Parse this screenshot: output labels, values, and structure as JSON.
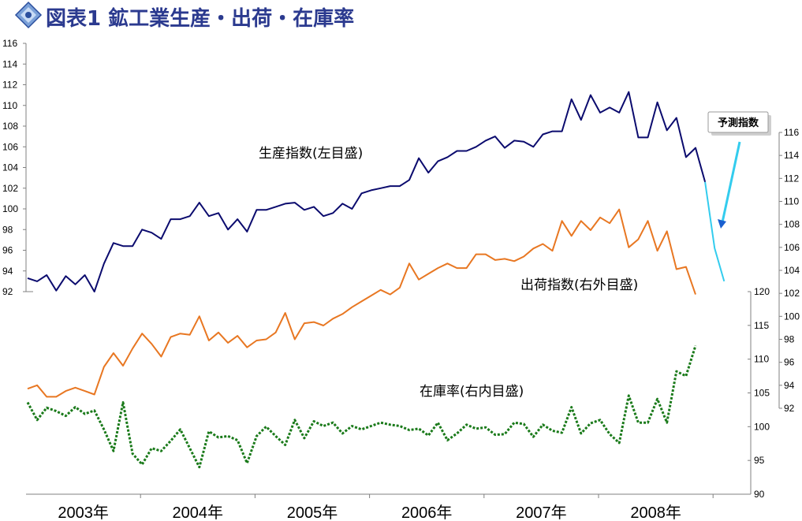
{
  "title": "図表1 鉱工業生産・出荷・在庫率",
  "colors": {
    "production": "#0b0b6e",
    "shipment": "#e87722",
    "inventory": "#1a7a1a",
    "forecast": "#33ccee",
    "title": "#2b3a8f"
  },
  "icon": "blue-diamond-logo-icon",
  "chart_data": {
    "type": "line",
    "x_labels": [
      "2003年",
      "2004年",
      "2005年",
      "2006年",
      "2007年",
      "2008年"
    ],
    "forecast_label": "予測指数",
    "axes": {
      "left": {
        "ticks": [
          92,
          94,
          96,
          98,
          100,
          102,
          104,
          106,
          108,
          110,
          112,
          114,
          116
        ],
        "ylim": [
          92,
          116
        ]
      },
      "right_outer": {
        "ticks": [
          92,
          94,
          96,
          98,
          100,
          102,
          104,
          106,
          108,
          110,
          112,
          114,
          116
        ],
        "ylim": [
          92,
          116
        ]
      },
      "right_inner": {
        "ticks": [
          90,
          95,
          100,
          105,
          110,
          115,
          120
        ],
        "ylim": [
          90,
          120
        ]
      }
    },
    "series": [
      {
        "key": "production",
        "name": "生産指数(左目盛)",
        "axis": "left",
        "start": "2003-01",
        "values": [
          93.3,
          93.0,
          93.6,
          92.1,
          93.5,
          92.7,
          93.6,
          92.0,
          94.7,
          96.7,
          96.4,
          96.4,
          98.0,
          97.7,
          97.1,
          99.0,
          99.0,
          99.3,
          100.6,
          99.3,
          99.6,
          98.0,
          99.0,
          97.8,
          99.9,
          99.9,
          100.2,
          100.5,
          100.6,
          99.9,
          100.2,
          99.3,
          99.6,
          100.5,
          100.0,
          101.5,
          101.8,
          102.0,
          102.2,
          102.2,
          102.8,
          104.9,
          103.5,
          104.6,
          105.0,
          105.6,
          105.6,
          106.0,
          106.6,
          107.0,
          105.9,
          106.6,
          106.5,
          106.0,
          107.2,
          107.5,
          107.5,
          110.6,
          108.6,
          111.0,
          109.3,
          109.8,
          109.3,
          111.3,
          106.9,
          106.9,
          110.3,
          107.6,
          108.8,
          105.0,
          105.9,
          102.6
        ],
        "forecast": [
          102.6,
          96.2,
          93.0
        ]
      },
      {
        "key": "shipment",
        "name": "出荷指数(右外目盛)",
        "axis": "right_outer",
        "start": "2003-01",
        "values": [
          93.7,
          94.0,
          93.0,
          93.0,
          93.5,
          93.8,
          93.5,
          93.2,
          95.6,
          96.8,
          95.7,
          97.2,
          98.5,
          97.6,
          96.5,
          98.2,
          98.5,
          98.4,
          100.0,
          97.9,
          98.6,
          97.7,
          98.3,
          97.3,
          97.9,
          98.0,
          98.6,
          100.3,
          98.0,
          99.4,
          99.5,
          99.2,
          99.8,
          100.2,
          100.8,
          101.3,
          101.8,
          102.3,
          101.9,
          102.5,
          104.6,
          103.2,
          103.7,
          104.2,
          104.6,
          104.2,
          104.2,
          105.4,
          105.4,
          104.9,
          105.0,
          104.8,
          105.2,
          105.9,
          106.3,
          105.7,
          108.3,
          107.0,
          108.3,
          107.5,
          108.6,
          108.1,
          109.3,
          106.0,
          106.7,
          108.3,
          105.7,
          107.4,
          104.1,
          104.3,
          101.9
        ]
      },
      {
        "key": "inventory",
        "name": "在庫率(右内目盛)",
        "axis": "right_inner",
        "start": "2003-01",
        "values": [
          103.6,
          101.0,
          102.8,
          102.3,
          101.6,
          102.9,
          101.9,
          102.4,
          99.6,
          96.4,
          103.6,
          96.0,
          94.4,
          96.8,
          96.4,
          97.9,
          99.6,
          96.8,
          94.0,
          99.3,
          98.4,
          98.6,
          98.0,
          94.6,
          98.6,
          100.0,
          98.6,
          97.3,
          101.0,
          98.3,
          100.8,
          100.1,
          100.6,
          99.0,
          100.1,
          99.6,
          100.1,
          100.6,
          100.3,
          100.1,
          99.5,
          99.7,
          98.7,
          100.6,
          98.0,
          99.0,
          100.3,
          99.7,
          99.9,
          98.8,
          98.9,
          100.6,
          100.4,
          98.5,
          100.3,
          99.4,
          99.1,
          102.9,
          99.0,
          100.5,
          101.0,
          98.9,
          97.6,
          104.6,
          100.6,
          100.6,
          104.1,
          100.6,
          108.2,
          107.5,
          112.0
        ]
      }
    ],
    "annotations": [
      "生産指数(左目盛)",
      "出荷指数(右外目盛)",
      "在庫率(右内目盛)"
    ]
  }
}
